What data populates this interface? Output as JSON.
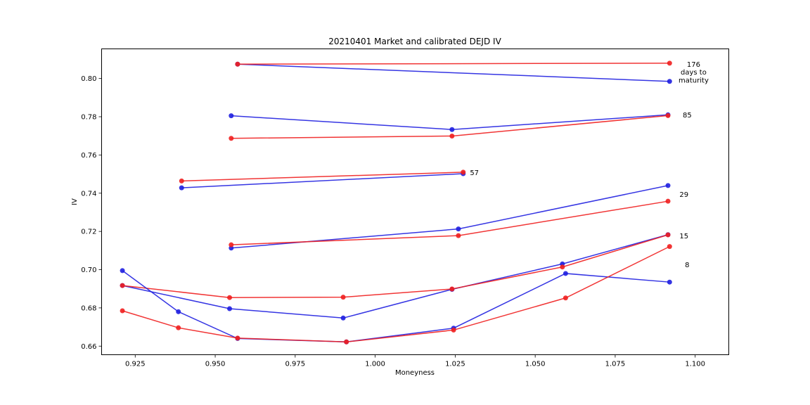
{
  "chart_data": {
    "type": "line",
    "title": "20210401 Market and calibrated DEJD IV",
    "xlabel": "Moneyness",
    "ylabel": "IV",
    "xlim": [
      0.9145,
      1.1105
    ],
    "ylim": [
      0.6555,
      0.8155
    ],
    "xticks": [
      0.925,
      0.95,
      0.975,
      1.0,
      1.025,
      1.05,
      1.075,
      1.1
    ],
    "xtick_labels": [
      "0.925",
      "0.950",
      "0.975",
      "1.000",
      "1.025",
      "1.050",
      "1.075",
      "1.100"
    ],
    "yticks": [
      0.66,
      0.68,
      0.7,
      0.72,
      0.74,
      0.76,
      0.78,
      0.8
    ],
    "ytick_labels": [
      "0.66",
      "0.68",
      "0.70",
      "0.72",
      "0.74",
      "0.76",
      "0.78",
      "0.80"
    ],
    "grid": false,
    "colors": {
      "blue": "#1f1fe0",
      "red": "#f01f1f"
    },
    "series": [
      {
        "maturity": "176",
        "color": "#1f1fe0",
        "x": [
          0.957,
          1.092
        ],
        "y": [
          0.8075,
          0.7985
        ]
      },
      {
        "maturity": "176",
        "color": "#f01f1f",
        "x": [
          0.957,
          1.092
        ],
        "y": [
          0.8075,
          0.808
        ]
      },
      {
        "maturity": "85",
        "color": "#1f1fe0",
        "x": [
          0.955,
          1.024,
          1.0915
        ],
        "y": [
          0.7805,
          0.7733,
          0.781
        ]
      },
      {
        "maturity": "85",
        "color": "#f01f1f",
        "x": [
          0.955,
          1.024,
          1.0915
        ],
        "y": [
          0.7687,
          0.7699,
          0.7806
        ]
      },
      {
        "maturity": "57",
        "color": "#1f1fe0",
        "x": [
          0.9395,
          1.0275
        ],
        "y": [
          0.7428,
          0.7502
        ]
      },
      {
        "maturity": "57",
        "color": "#f01f1f",
        "x": [
          0.9395,
          1.0275
        ],
        "y": [
          0.7464,
          0.751
        ]
      },
      {
        "maturity": "29",
        "color": "#1f1fe0",
        "x": [
          0.955,
          1.026,
          1.0915
        ],
        "y": [
          0.7113,
          0.7213,
          0.744
        ]
      },
      {
        "maturity": "29",
        "color": "#f01f1f",
        "x": [
          0.955,
          1.026,
          1.0915
        ],
        "y": [
          0.713,
          0.7178,
          0.7358
        ]
      },
      {
        "maturity": "15",
        "color": "#1f1fe0",
        "x": [
          0.921,
          0.9545,
          0.99,
          1.024,
          1.0585,
          1.0915
        ],
        "y": [
          0.6917,
          0.6796,
          0.6747,
          0.6897,
          0.703,
          0.7183
        ]
      },
      {
        "maturity": "15",
        "color": "#f01f1f",
        "x": [
          0.921,
          0.9545,
          0.99,
          1.024,
          1.0585,
          1.0915
        ],
        "y": [
          0.6917,
          0.6854,
          0.6856,
          0.6899,
          0.7014,
          0.7182
        ]
      },
      {
        "maturity": "8",
        "color": "#1f1fe0",
        "x": [
          0.921,
          0.9385,
          0.957,
          0.991,
          1.0245,
          1.0595,
          1.092
        ],
        "y": [
          0.6995,
          0.678,
          0.664,
          0.6622,
          0.6694,
          0.698,
          0.6935
        ]
      },
      {
        "maturity": "8",
        "color": "#f01f1f",
        "x": [
          0.921,
          0.9385,
          0.957,
          0.991,
          1.0245,
          1.0595,
          1.092
        ],
        "y": [
          0.6785,
          0.6696,
          0.6642,
          0.6622,
          0.6684,
          0.6852,
          0.7121
        ]
      }
    ],
    "annotations": [
      {
        "text": "176",
        "x": 1.0995,
        "y": 0.8075
      },
      {
        "text": "days to",
        "x": 1.0995,
        "y": 0.8033
      },
      {
        "text": "maturity",
        "x": 1.0995,
        "y": 0.7992
      },
      {
        "text": "85",
        "x": 1.0975,
        "y": 0.781
      },
      {
        "text": "57",
        "x": 1.031,
        "y": 0.7508
      },
      {
        "text": "29",
        "x": 1.0965,
        "y": 0.7393
      },
      {
        "text": "15",
        "x": 1.0965,
        "y": 0.7176
      },
      {
        "text": "8",
        "x": 1.0975,
        "y": 0.7025
      }
    ]
  }
}
